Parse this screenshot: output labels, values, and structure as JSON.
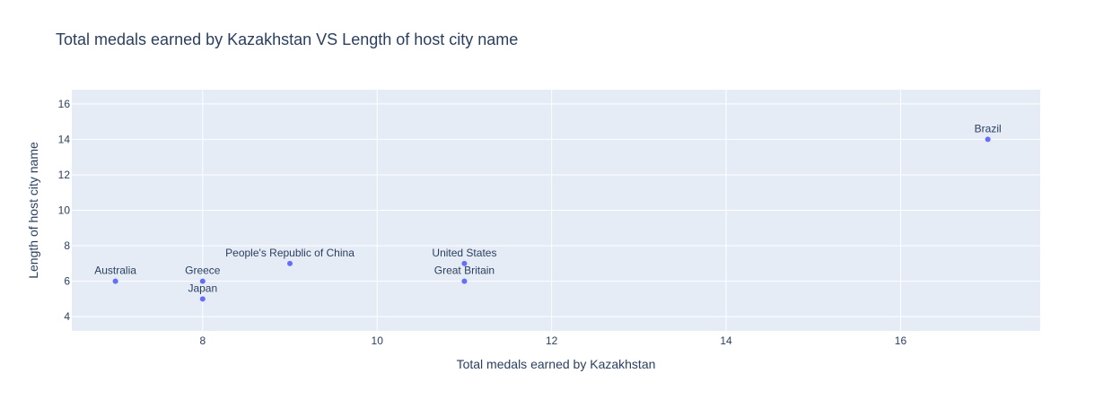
{
  "chart_data": {
    "type": "scatter",
    "title": "Total medals earned by Kazakhstan VS Length of host city name",
    "xlabel": "Total medals earned by Kazakhstan",
    "ylabel": "Length of host city name",
    "xlim": [
      6.5,
      17.6
    ],
    "ylim": [
      3.2,
      16.8
    ],
    "xticks": [
      8,
      10,
      12,
      14,
      16
    ],
    "yticks": [
      4,
      6,
      8,
      10,
      12,
      14,
      16
    ],
    "grid": true,
    "points": [
      {
        "label": "Australia",
        "x": 7,
        "y": 6
      },
      {
        "label": "Greece",
        "x": 8,
        "y": 6
      },
      {
        "label": "Japan",
        "x": 8,
        "y": 5
      },
      {
        "label": "People's Republic of China",
        "x": 9,
        "y": 7
      },
      {
        "label": "United States",
        "x": 11,
        "y": 7
      },
      {
        "label": "Great Britain",
        "x": 11,
        "y": 6
      },
      {
        "label": "Brazil",
        "x": 17,
        "y": 14
      }
    ],
    "colors": {
      "plot_background": "#e5ecf6",
      "grid": "#ffffff",
      "marker": "#636efa",
      "text": "#2a3f5f"
    }
  }
}
